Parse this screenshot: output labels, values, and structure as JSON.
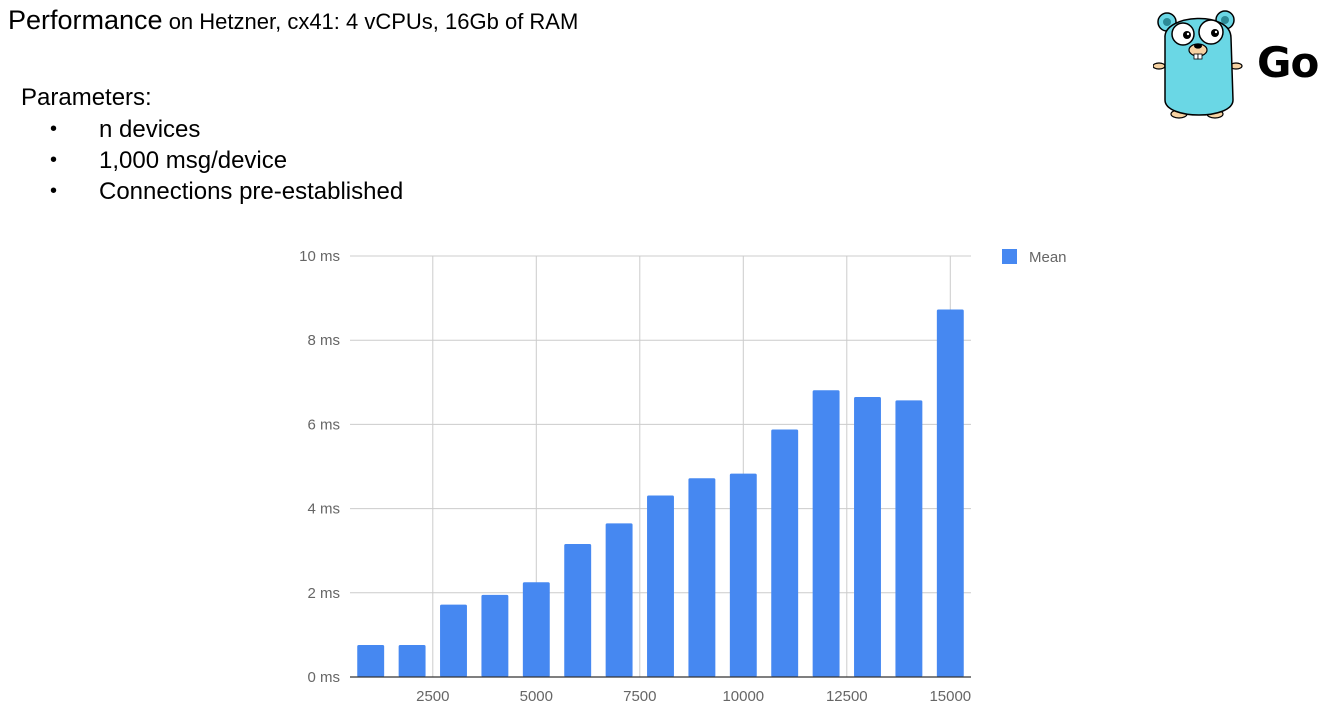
{
  "header": {
    "title_main": "Performance",
    "title_sub": " on Hetzner, cx41: 4 vCPUs, 16Gb of RAM"
  },
  "parameters": {
    "heading": "Parameters:",
    "bullet": "•",
    "items": [
      "n devices",
      "1,000 msg/device",
      "Connections pre-established"
    ]
  },
  "logo": {
    "text": "Go",
    "icon": "go-gopher-icon"
  },
  "colors": {
    "bar": "#4688f1",
    "grid": "#cccccc",
    "axis": "#333333",
    "tick_text": "#666666"
  },
  "chart_data": {
    "type": "bar",
    "x": [
      1000,
      2000,
      3000,
      4000,
      5000,
      6000,
      7000,
      8000,
      9000,
      10000,
      11000,
      12000,
      13000,
      14000,
      15000
    ],
    "series": [
      {
        "name": "Mean",
        "values": [
          0.76,
          0.76,
          1.72,
          1.95,
          2.25,
          3.16,
          3.65,
          4.31,
          4.72,
          4.83,
          5.88,
          6.81,
          6.65,
          6.57,
          8.73
        ]
      }
    ],
    "x_ticks": [
      2500,
      5000,
      7500,
      10000,
      12500,
      15000
    ],
    "x_tick_labels": [
      "2500",
      "5000",
      "7500",
      "10000",
      "12500",
      "15000"
    ],
    "y_ticks": [
      0,
      2,
      4,
      6,
      8,
      10
    ],
    "y_tick_labels": [
      "0 ms",
      "2 ms",
      "4 ms",
      "6 ms",
      "8 ms",
      "10 ms"
    ],
    "xlim": [
      500,
      15500
    ],
    "ylim": [
      0,
      10
    ],
    "title": "",
    "xlabel": "",
    "ylabel": "",
    "grid": true,
    "legend": "right",
    "legend_label": "Mean"
  }
}
